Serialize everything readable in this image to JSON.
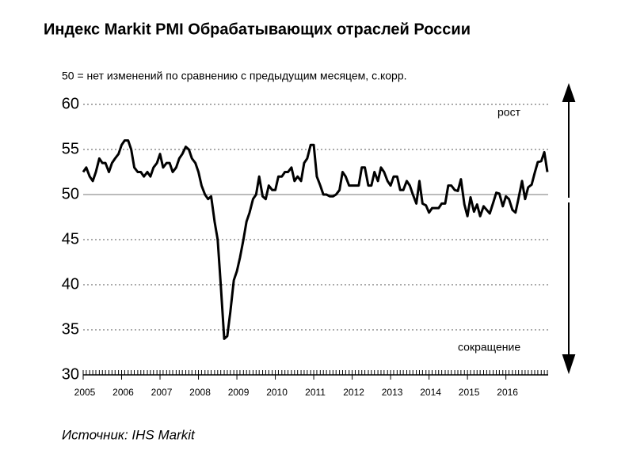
{
  "chart_data": {
    "type": "line",
    "title": "Индекс Markit PMI Обрабатывающих отраслей России",
    "subtitle": "50 = нет изменений по сравнению с предыдущим месяцем, с.корр.",
    "annotations": [
      "рост",
      "сокращение"
    ],
    "source": "Источник: IHS Markit",
    "x": [
      2005,
      2005.08,
      2005.17,
      2005.25,
      2005.33,
      2005.42,
      2005.5,
      2005.58,
      2005.67,
      2005.75,
      2005.83,
      2005.92,
      2006,
      2006.08,
      2006.17,
      2006.25,
      2006.33,
      2006.42,
      2006.5,
      2006.58,
      2006.67,
      2006.75,
      2006.83,
      2006.92,
      2007,
      2007.08,
      2007.17,
      2007.25,
      2007.33,
      2007.42,
      2007.5,
      2007.58,
      2007.67,
      2007.75,
      2007.83,
      2007.92,
      2008,
      2008.08,
      2008.17,
      2008.25,
      2008.33,
      2008.42,
      2008.5,
      2008.58,
      2008.67,
      2008.75,
      2008.83,
      2008.92,
      2009,
      2009.08,
      2009.17,
      2009.25,
      2009.33,
      2009.42,
      2009.5,
      2009.58,
      2009.67,
      2009.75,
      2009.83,
      2009.92,
      2010,
      2010.08,
      2010.17,
      2010.25,
      2010.33,
      2010.42,
      2010.5,
      2010.58,
      2010.67,
      2010.75,
      2010.83,
      2010.92,
      2011,
      2011.08,
      2011.17,
      2011.25,
      2011.33,
      2011.42,
      2011.5,
      2011.58,
      2011.67,
      2011.75,
      2011.83,
      2011.92,
      2012,
      2012.08,
      2012.17,
      2012.25,
      2012.33,
      2012.42,
      2012.5,
      2012.58,
      2012.67,
      2012.75,
      2012.83,
      2012.92,
      2013,
      2013.08,
      2013.17,
      2013.25,
      2013.33,
      2013.42,
      2013.5,
      2013.58,
      2013.67,
      2013.75,
      2013.83,
      2013.92,
      2014,
      2014.08,
      2014.17,
      2014.25,
      2014.33,
      2014.42,
      2014.5,
      2014.58,
      2014.67,
      2014.75,
      2014.83,
      2014.92,
      2015,
      2015.08,
      2015.17,
      2015.25,
      2015.33,
      2015.42,
      2015.5,
      2015.58,
      2015.67,
      2015.75,
      2015.83,
      2015.92,
      2016,
      2016.08,
      2016.17,
      2016.25,
      2016.33,
      2016.42,
      2016.5,
      2016.58,
      2016.67,
      2016.75,
      2016.83,
      2016.92,
      2017,
      2017.08
    ],
    "series": [
      {
        "name": "PMI",
        "color": "#000000",
        "values": [
          52.5,
          53,
          52,
          51.5,
          52.5,
          54,
          53.5,
          53.5,
          52.5,
          53.5,
          54,
          54.5,
          55.5,
          56,
          56,
          55,
          53,
          52.5,
          52.5,
          52,
          52.5,
          52,
          53,
          53.5,
          54.5,
          53,
          53.5,
          53.5,
          52.5,
          53,
          54,
          54.5,
          55.3,
          55,
          54,
          53.5,
          52.5,
          51,
          50,
          49.5,
          49.8,
          47,
          45,
          40,
          34,
          34.3,
          37,
          40.5,
          41.5,
          43,
          45,
          47,
          48,
          49.5,
          50,
          52,
          49.8,
          49.5,
          51,
          50.5,
          50.5,
          52,
          52,
          52.5,
          52.5,
          53,
          51.5,
          52,
          51.5,
          53.5,
          54,
          55.5,
          55.5,
          52,
          51,
          50,
          50,
          49.8,
          49.8,
          50,
          50.5,
          52.5,
          52,
          51,
          51,
          51,
          51,
          53,
          53,
          51,
          51,
          52.5,
          51.5,
          53,
          52.5,
          51.5,
          51,
          52,
          52,
          50.5,
          50.5,
          51.5,
          51,
          50,
          49,
          51.5,
          49,
          48.8,
          48,
          48.5,
          48.5,
          48.5,
          49,
          49,
          51,
          51,
          50.5,
          50.4,
          51.7,
          48.9,
          47.6,
          49.7,
          48.1,
          48.9,
          47.6,
          48.7,
          48.3,
          47.9,
          49.1,
          50.2,
          50.1,
          48.7,
          49.8,
          49.5,
          48.3,
          48,
          49.6,
          51.5,
          49.5,
          50.8,
          51.1,
          52.4,
          53.6,
          53.7,
          54.7,
          52.5
        ]
      }
    ],
    "xlim": [
      2005,
      2017.1
    ],
    "xticks": [
      2005,
      2006,
      2007,
      2008,
      2009,
      2010,
      2011,
      2012,
      2013,
      2014,
      2015,
      2016
    ],
    "ylim": [
      30,
      60
    ],
    "yticks": [
      30,
      35,
      40,
      45,
      50,
      55,
      60
    ],
    "grid": true
  }
}
